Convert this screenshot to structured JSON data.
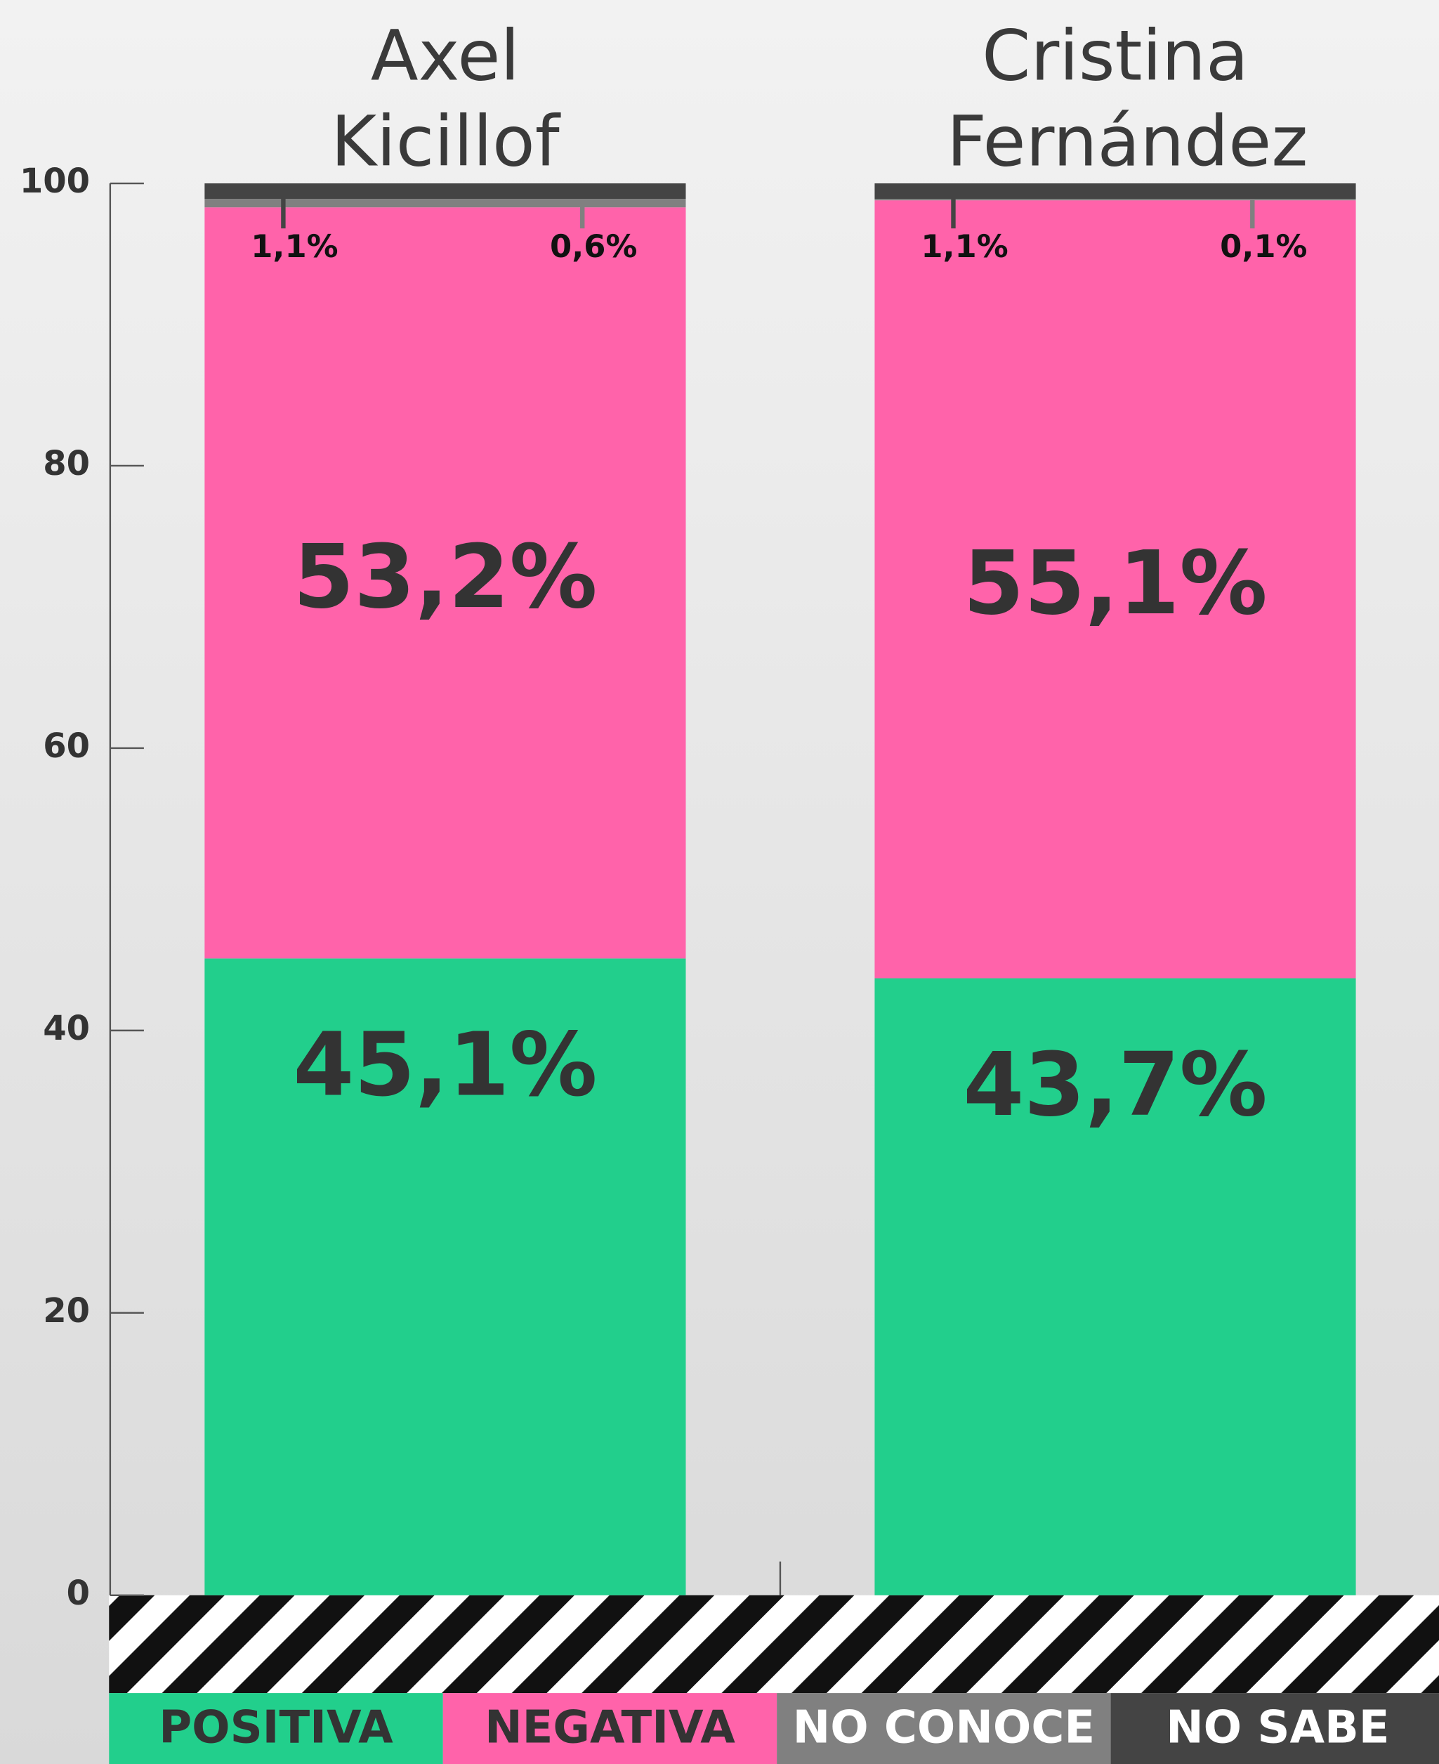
{
  "chart_data": {
    "type": "stacked-bar",
    "categories": [
      "Axel Kicillof",
      "Cristina Fernández"
    ],
    "series": [
      {
        "name": "POSITIVA",
        "color": "#22cf8c",
        "values": [
          45.1,
          43.7
        ],
        "value_labels": [
          "45,1%",
          "43,7%"
        ]
      },
      {
        "name": "NEGATIVA",
        "color": "#ff63aa",
        "values": [
          53.2,
          55.1
        ],
        "value_labels": [
          "53,2%",
          "55,1%"
        ]
      },
      {
        "name": "NO CONOCE",
        "color": "#808080",
        "values": [
          0.6,
          0.1
        ],
        "value_labels": [
          "0,6%",
          "0,1%"
        ]
      },
      {
        "name": "NO SABE",
        "color": "#444444",
        "values": [
          1.1,
          1.1
        ],
        "value_labels": [
          "1,1%",
          "1,1%"
        ]
      }
    ],
    "ylim": [
      0,
      100
    ],
    "yticks": [
      0,
      20,
      40,
      60,
      80,
      100
    ]
  }
}
